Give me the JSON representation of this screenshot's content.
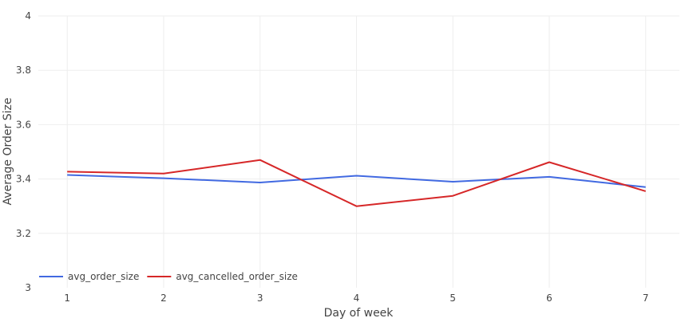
{
  "chart_data": {
    "type": "line",
    "title": "",
    "xlabel": "Day of week",
    "ylabel": "Average Order Size",
    "x": [
      1,
      2,
      3,
      4,
      5,
      6,
      7
    ],
    "xticks": [
      "1",
      "2",
      "3",
      "4",
      "5",
      "6",
      "7"
    ],
    "yticks": [
      "3",
      "3.2",
      "3.4",
      "3.6",
      "3.8",
      "4"
    ],
    "xlim": [
      0.7,
      7.35
    ],
    "ylim": [
      3,
      4
    ],
    "grid": true,
    "legend_position": "bottom-left",
    "series": [
      {
        "name": "avg_order_size",
        "color": "#4169e1",
        "values": [
          3.415,
          3.403,
          3.387,
          3.412,
          3.39,
          3.408,
          3.37
        ]
      },
      {
        "name": "avg_cancelled_order_size",
        "color": "#d62728",
        "values": [
          3.427,
          3.42,
          3.47,
          3.3,
          3.338,
          3.462,
          3.355
        ]
      }
    ]
  }
}
